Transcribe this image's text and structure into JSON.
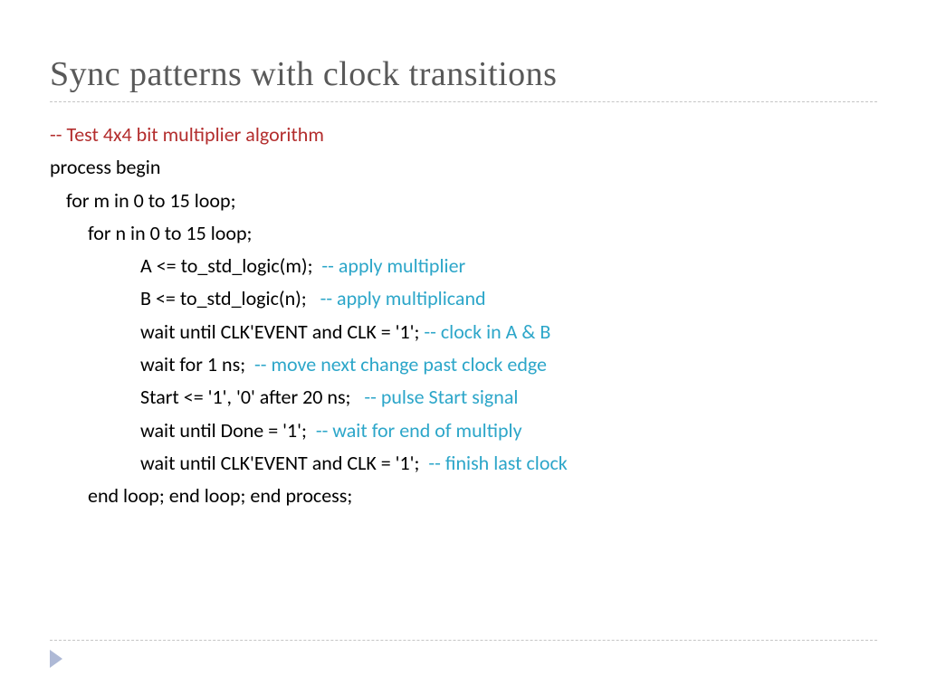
{
  "title": "Sync patterns with clock transitions",
  "colors": {
    "title": "#595959",
    "red": "#b32d2d",
    "black": "#000000",
    "teal": "#2ca6c9",
    "dash": "#c5c5c5",
    "triangle": "#aeb9d6"
  },
  "lines": [
    {
      "indent": 0,
      "parts": [
        {
          "text": "-- Test 4x4 bit multiplier algorithm",
          "cls": "red"
        }
      ]
    },
    {
      "indent": 0,
      "parts": [
        {
          "text": "process begin",
          "cls": "black"
        }
      ]
    },
    {
      "indent": 1,
      "parts": [
        {
          "text": "for m in 0 to 15 loop;",
          "cls": "black"
        }
      ]
    },
    {
      "indent": 2,
      "parts": [
        {
          "text": "for n in 0 to 15 loop;",
          "cls": "black"
        }
      ]
    },
    {
      "indent": 3,
      "parts": [
        {
          "text": "A <= to_std_logic(m);  ",
          "cls": "black"
        },
        {
          "text": "-- apply multiplier",
          "cls": "teal"
        }
      ]
    },
    {
      "indent": 3,
      "parts": [
        {
          "text": "B <= to_std_logic(n);   ",
          "cls": "black"
        },
        {
          "text": "-- apply multiplicand",
          "cls": "teal"
        }
      ]
    },
    {
      "indent": 3,
      "parts": [
        {
          "text": "wait until CLK'EVENT and CLK = '1'; ",
          "cls": "black"
        },
        {
          "text": "-- clock in A & B",
          "cls": "teal"
        }
      ]
    },
    {
      "indent": 3,
      "parts": [
        {
          "text": "wait for 1 ns;  ",
          "cls": "black"
        },
        {
          "text": "-- move next change past clock edge",
          "cls": "teal"
        }
      ]
    },
    {
      "indent": 3,
      "parts": [
        {
          "text": "Start <= '1', '0' after 20 ns;   ",
          "cls": "black"
        },
        {
          "text": "-- pulse Start signal",
          "cls": "teal"
        }
      ]
    },
    {
      "indent": 3,
      "parts": [
        {
          "text": "wait until Done = '1';  ",
          "cls": "black"
        },
        {
          "text": "-- wait for end of multiply",
          "cls": "teal"
        }
      ]
    },
    {
      "indent": 3,
      "parts": [
        {
          "text": "wait until CLK'EVENT and CLK = '1';  ",
          "cls": "black"
        },
        {
          "text": "-- finish last clock",
          "cls": "teal"
        }
      ]
    },
    {
      "indent": 2,
      "parts": [
        {
          "text": "end loop; end loop; end process;",
          "cls": "black"
        }
      ]
    }
  ]
}
